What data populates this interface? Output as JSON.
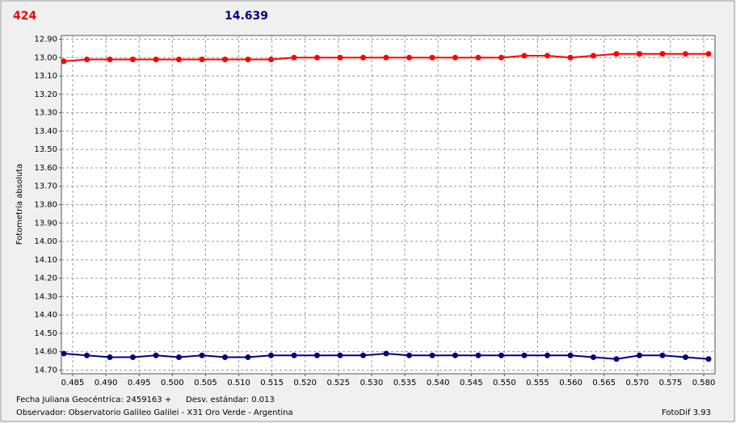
{
  "chart_data": {
    "type": "line",
    "header_left": "424",
    "header_right": "14.639",
    "y_label": "Fotometría absoluta",
    "x_label": "Fecha Juliana Geocéntrica: 2459163 +",
    "std_dev": "Desv. estándar: 0.013",
    "observer": "Observador: Observatorio Galileo Galilei - X31 Oro Verde - Argentina",
    "software": "FotoDif 3.93",
    "y_inverted": true,
    "grid": true,
    "xlim": [
      0.4833,
      0.5817
    ],
    "ylim": [
      12.88,
      14.72
    ],
    "yticks": [
      {
        "value": 12.9,
        "label": "12.90"
      },
      {
        "value": 13.0,
        "label": "13.00"
      },
      {
        "value": 13.1,
        "label": "13.10"
      },
      {
        "value": 13.2,
        "label": "13.20"
      },
      {
        "value": 13.3,
        "label": "13.30"
      },
      {
        "value": 13.4,
        "label": "13.40"
      },
      {
        "value": 13.5,
        "label": "13.50"
      },
      {
        "value": 13.6,
        "label": "13.60"
      },
      {
        "value": 13.7,
        "label": "13.70"
      },
      {
        "value": 13.8,
        "label": "13.80"
      },
      {
        "value": 13.9,
        "label": "13.90"
      },
      {
        "value": 14.0,
        "label": "14.00"
      },
      {
        "value": 14.1,
        "label": "14.10"
      },
      {
        "value": 14.2,
        "label": "14.20"
      },
      {
        "value": 14.3,
        "label": "14.30"
      },
      {
        "value": 14.4,
        "label": "14.40"
      },
      {
        "value": 14.5,
        "label": "14.50"
      },
      {
        "value": 14.6,
        "label": "14.60"
      },
      {
        "value": 14.7,
        "label": "14.70"
      }
    ],
    "xticks": [
      0.485,
      {
        "value": 0.49,
        "label": "0.490"
      },
      0.495,
      {
        "value": 0.5,
        "label": "0.500"
      },
      0.505,
      {
        "value": 0.51,
        "label": "0.510"
      },
      0.515,
      {
        "value": 0.52,
        "label": "0.520"
      },
      0.525,
      {
        "value": 0.53,
        "label": "0.530"
      },
      0.535,
      {
        "value": 0.54,
        "label": "0.540"
      },
      0.545,
      {
        "value": 0.55,
        "label": "0.550"
      },
      0.555,
      {
        "value": 0.56,
        "label": "0.560"
      },
      0.565,
      {
        "value": 0.57,
        "label": "0.570"
      },
      0.575,
      {
        "value": 0.58,
        "label": "0.580"
      }
    ],
    "x": [
      0.48366,
      0.48713,
      0.49059,
      0.49406,
      0.49753,
      0.50099,
      0.50446,
      0.50793,
      0.51139,
      0.51486,
      0.51833,
      0.52179,
      0.52526,
      0.52873,
      0.53219,
      0.53566,
      0.53913,
      0.54259,
      0.54606,
      0.54953,
      0.55299,
      0.55646,
      0.55993,
      0.56339,
      0.56686,
      0.57033,
      0.57379,
      0.57726,
      0.58073
    ],
    "series": [
      {
        "color": "#ff0000",
        "values": [
          13.02,
          13.01,
          13.01,
          13.01,
          13.01,
          13.01,
          13.01,
          13.01,
          13.01,
          13.01,
          13.0,
          13.0,
          13.0,
          13.0,
          13.0,
          13.0,
          13.0,
          13.0,
          13.0,
          13.0,
          12.99,
          12.99,
          13.0,
          12.99,
          12.98,
          12.98,
          12.98,
          12.98,
          12.98
        ]
      },
      {
        "color": "#000080",
        "values": [
          14.61,
          14.62,
          14.63,
          14.63,
          14.62,
          14.63,
          14.62,
          14.63,
          14.63,
          14.62,
          14.62,
          14.62,
          14.62,
          14.62,
          14.61,
          14.62,
          14.62,
          14.62,
          14.62,
          14.62,
          14.62,
          14.62,
          14.62,
          14.63,
          14.64,
          14.62,
          14.62,
          14.63,
          14.64
        ]
      }
    ]
  }
}
